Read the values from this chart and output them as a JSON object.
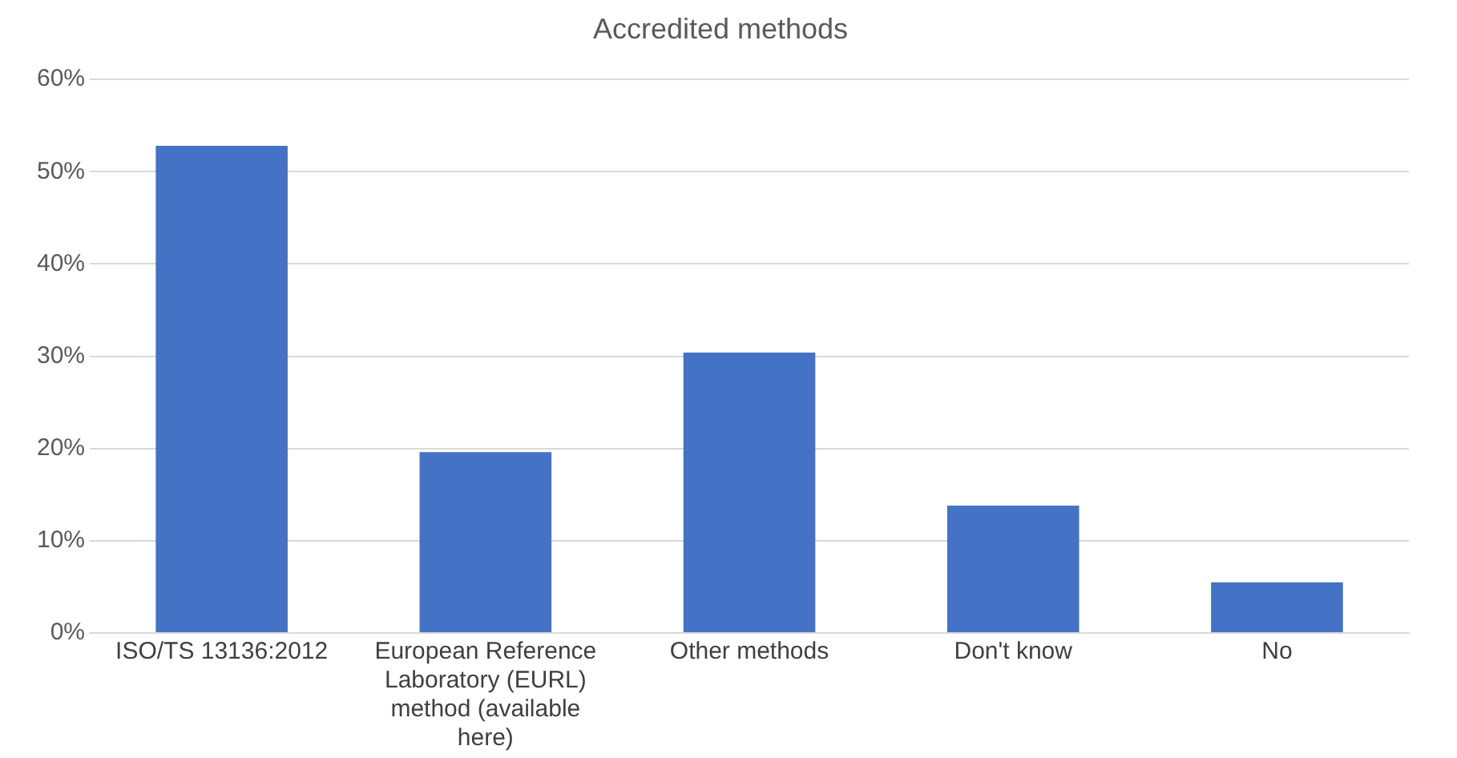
{
  "chart_data": {
    "type": "bar",
    "title": "Accredited methods",
    "categories": [
      "ISO/TS 13136:2012",
      "European Reference Laboratory (EURL) method (available here)",
      "Other methods",
      "Don't know",
      "No"
    ],
    "values": [
      52.8,
      19.6,
      30.4,
      13.8,
      5.5
    ],
    "color": "#4472c4",
    "ylim": [
      0,
      60
    ],
    "yticks": [
      {
        "value": 0,
        "label": "0%"
      },
      {
        "value": 10,
        "label": "10%"
      },
      {
        "value": 20,
        "label": "20%"
      },
      {
        "value": 30,
        "label": "30%"
      },
      {
        "value": 40,
        "label": "40%"
      },
      {
        "value": 50,
        "label": "50%"
      },
      {
        "value": 60,
        "label": "60%"
      }
    ],
    "grid": "y",
    "legend": false
  }
}
